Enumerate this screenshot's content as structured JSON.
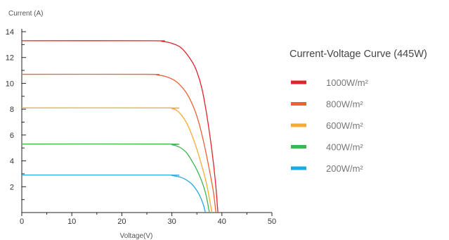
{
  "chart_data": {
    "type": "line",
    "title": "Current-Voltage Curve (445W)",
    "xlabel": "Voltage(V)",
    "ylabel": "Current (A)",
    "xlim": [
      0,
      50
    ],
    "ylim": [
      0,
      14
    ],
    "x_ticks": [
      0,
      10,
      20,
      30,
      40,
      50
    ],
    "y_ticks": [
      2,
      4,
      6,
      8,
      10,
      12,
      14
    ],
    "legend_position": "right",
    "grid": false,
    "series": [
      {
        "name": "1000W/m²",
        "color": "#e0242a",
        "points": [
          [
            0,
            13.3
          ],
          [
            26,
            13.3
          ],
          [
            28,
            13.25
          ],
          [
            30,
            13.1
          ],
          [
            32,
            12.7
          ],
          [
            34,
            11.7
          ],
          [
            35,
            10.9
          ],
          [
            36,
            9.6
          ],
          [
            37,
            7.5
          ],
          [
            38,
            4.8
          ],
          [
            38.7,
            2.4
          ],
          [
            39.2,
            0
          ]
        ]
      },
      {
        "name": "800W/m²",
        "color": "#f06030",
        "points": [
          [
            0,
            10.7
          ],
          [
            25,
            10.7
          ],
          [
            27,
            10.65
          ],
          [
            29,
            10.5
          ],
          [
            31,
            10.1
          ],
          [
            33,
            9.2
          ],
          [
            34.5,
            8.0
          ],
          [
            35.5,
            6.8
          ],
          [
            36.5,
            5.2
          ],
          [
            37.5,
            3.3
          ],
          [
            38.3,
            1.6
          ],
          [
            38.8,
            0
          ]
        ]
      },
      {
        "name": "600W/m²",
        "color": "#f5ab35",
        "points": [
          [
            0,
            8.1
          ],
          [
            29,
            8.1
          ],
          [
            30,
            8.05
          ],
          [
            31,
            7.9
          ],
          [
            32,
            7.5
          ],
          [
            33,
            6.9
          ],
          [
            34,
            6.0
          ],
          [
            35,
            4.9
          ],
          [
            36,
            3.6
          ],
          [
            37,
            2.1
          ],
          [
            38,
            0
          ]
        ]
      },
      {
        "name": "400W/m²",
        "color": "#3db64e",
        "points": [
          [
            0,
            5.3
          ],
          [
            29,
            5.3
          ],
          [
            30,
            5.25
          ],
          [
            31,
            5.15
          ],
          [
            32,
            4.95
          ],
          [
            33,
            4.6
          ],
          [
            34,
            4.0
          ],
          [
            35,
            3.3
          ],
          [
            36,
            2.4
          ],
          [
            36.8,
            1.4
          ],
          [
            37.5,
            0
          ]
        ]
      },
      {
        "name": "200W/m²",
        "color": "#1fa9e1",
        "points": [
          [
            0,
            2.9
          ],
          [
            29,
            2.9
          ],
          [
            30,
            2.87
          ],
          [
            31,
            2.8
          ],
          [
            32,
            2.7
          ],
          [
            33,
            2.5
          ],
          [
            34,
            2.2
          ],
          [
            35,
            1.7
          ],
          [
            35.7,
            1.2
          ],
          [
            36.3,
            0.6
          ],
          [
            36.7,
            0
          ]
        ]
      }
    ]
  }
}
